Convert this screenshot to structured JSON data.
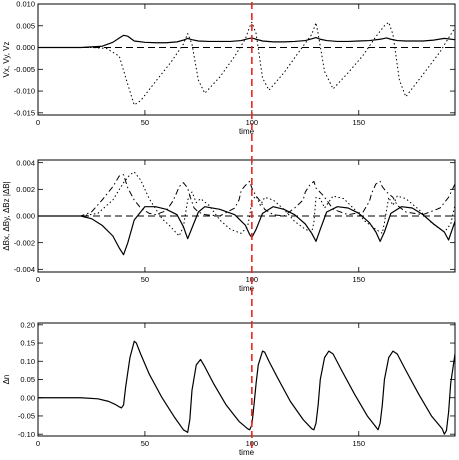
{
  "chart_data": [
    {
      "type": "line",
      "xlabel": "time",
      "ylabel": "Vx, Vy, Vz",
      "xlim": [
        0,
        195
      ],
      "ylim": [
        -0.0155,
        0.01
      ],
      "xticks": [
        0,
        50,
        100,
        150
      ],
      "xtick_labels": [
        "0",
        "50",
        "100",
        "150"
      ],
      "yticks": [
        0.01,
        0.005,
        0.0,
        -0.005,
        -0.01,
        -0.015
      ],
      "ytick_labels": [
        "0.010",
        "0.005",
        "0.000",
        "-0.005",
        "-0.010",
        "-0.015"
      ],
      "series": [
        {
          "style": "solid",
          "x": [
            0,
            20,
            30,
            35,
            38,
            40,
            42,
            45,
            50,
            55,
            60,
            65,
            68,
            70,
            72,
            75,
            80,
            85,
            90,
            95,
            98,
            100,
            102,
            105,
            110,
            115,
            120,
            125,
            128,
            130,
            132,
            135,
            140,
            145,
            150,
            155,
            160,
            163,
            165,
            168,
            172,
            180,
            185,
            190,
            195
          ],
          "y": [
            0,
            0,
            0.0003,
            0.0012,
            0.0022,
            0.0028,
            0.0026,
            0.0015,
            0.0012,
            0.0011,
            0.0011,
            0.0013,
            0.0017,
            0.0021,
            0.0018,
            0.0015,
            0.0014,
            0.0014,
            0.0014,
            0.0016,
            0.002,
            0.0022,
            0.0019,
            0.0015,
            0.0013,
            0.0013,
            0.0014,
            0.0016,
            0.002,
            0.0023,
            0.0019,
            0.0016,
            0.0014,
            0.0014,
            0.0015,
            0.0016,
            0.0019,
            0.0022,
            0.0019,
            0.0016,
            0.0015,
            0.0015,
            0.0017,
            0.0021,
            0.0018
          ]
        },
        {
          "style": "dashed",
          "x": [
            0,
            195
          ],
          "y": [
            0,
            0
          ]
        },
        {
          "style": "dotted",
          "x": [
            0,
            25,
            32,
            38,
            42,
            45,
            48,
            55,
            62,
            68,
            70,
            72,
            75,
            78,
            85,
            92,
            97,
            99,
            100,
            102,
            105,
            108,
            115,
            122,
            128,
            130,
            131,
            134,
            138,
            145,
            152,
            158,
            162,
            164,
            166,
            169,
            172,
            180,
            188,
            193,
            195
          ],
          "y": [
            0,
            0,
            -0.0002,
            -0.002,
            -0.0085,
            -0.0132,
            -0.0122,
            -0.0078,
            -0.0035,
            0.0008,
            0.0032,
            0.0008,
            -0.0075,
            -0.0105,
            -0.0068,
            -0.002,
            0.002,
            0.0048,
            0.0058,
            0.0032,
            -0.007,
            -0.0098,
            -0.0058,
            -0.001,
            0.003,
            0.0057,
            0.0032,
            -0.0055,
            -0.0095,
            -0.0058,
            -0.0018,
            0.0025,
            0.005,
            0.0058,
            0.003,
            -0.0075,
            -0.0113,
            -0.0062,
            -0.001,
            0.003,
            0.0045
          ]
        }
      ]
    },
    {
      "type": "line",
      "xlabel": "time",
      "ylabel": "ΔBx, ΔBy, ΔBz |ΔB|",
      "xlim": [
        0,
        195
      ],
      "ylim": [
        -0.0042,
        0.0042
      ],
      "xticks": [
        0,
        50,
        100,
        150
      ],
      "xtick_labels": [
        "0",
        "50",
        "100",
        "150"
      ],
      "yticks": [
        0.004,
        0.002,
        0.0,
        -0.002,
        -0.004
      ],
      "ytick_labels": [
        "0.004",
        "0.002",
        "0.000",
        "-0.002",
        "-0.004"
      ],
      "series": [
        {
          "style": "solid",
          "x": [
            0,
            20,
            25,
            30,
            35,
            38,
            40,
            42,
            45,
            50,
            55,
            60,
            65,
            68,
            70,
            72,
            75,
            78,
            85,
            92,
            97,
            99,
            100,
            102,
            105,
            110,
            115,
            120,
            125,
            128,
            130,
            132,
            135,
            140,
            145,
            150,
            155,
            158,
            160,
            162,
            165,
            170,
            175,
            180,
            185,
            190,
            192,
            195
          ],
          "y": [
            0,
            0,
            -0.0002,
            -0.0007,
            -0.0015,
            -0.0024,
            -0.0029,
            -0.002,
            -0.0003,
            0.0007,
            0.0007,
            0.0005,
            0.0001,
            -0.0008,
            -0.0017,
            -0.0009,
            0.0003,
            0.0007,
            0.0005,
            0.0001,
            -0.0007,
            -0.0014,
            -0.0016,
            -0.001,
            0.0002,
            0.0007,
            0.0005,
            0.0001,
            -0.0006,
            -0.0013,
            -0.0019,
            -0.001,
            0.0003,
            0.0007,
            0.0006,
            0.0002,
            -0.0005,
            -0.0012,
            -0.0019,
            -0.0012,
            0.0002,
            0.0007,
            0.0006,
            0.0001,
            -0.0006,
            -0.0012,
            -0.0018,
            -0.0004
          ]
        },
        {
          "style": "dashed",
          "x": [
            0,
            195
          ],
          "y": [
            0,
            0
          ]
        },
        {
          "style": "dotted",
          "x": [
            0,
            20,
            28,
            35,
            40,
            43,
            45,
            48,
            52,
            58,
            62,
            66,
            68,
            70,
            72,
            74,
            76,
            80,
            85,
            90,
            95,
            98,
            99,
            100,
            102,
            104,
            106,
            110,
            115,
            120,
            125,
            128,
            129,
            130,
            132,
            134,
            138,
            143,
            148,
            153,
            158,
            161,
            162,
            164,
            166,
            168,
            172,
            178,
            184,
            190,
            193,
            195
          ],
          "y": [
            0,
            0,
            0.0002,
            0.0012,
            0.0025,
            0.0031,
            0.0033,
            0.0027,
            0.0013,
            -0.0002,
            -0.0008,
            -0.0015,
            -0.0008,
            0.0012,
            0.0018,
            0.001,
            0.0013,
            0.0008,
            -0.0003,
            -0.001,
            -0.0013,
            -0.0008,
            0,
            0.0012,
            0.0015,
            0.0008,
            0.0014,
            0.0012,
            0.0005,
            -0.0004,
            -0.001,
            -0.0012,
            -0.0005,
            0.0014,
            0.0013,
            0.0006,
            0.0015,
            0.0013,
            0.0005,
            -0.0004,
            -0.001,
            -0.0013,
            -0.0005,
            0.0014,
            0.0008,
            0.0015,
            0.0013,
            0.0005,
            -0.0005,
            -0.0012,
            -0.0006,
            0.0008
          ]
        },
        {
          "style": "dashdot",
          "x": [
            0,
            20,
            25,
            30,
            35,
            38,
            40,
            42,
            45,
            48,
            52,
            55,
            60,
            63,
            65,
            66,
            68,
            70,
            71,
            73,
            75,
            78,
            85,
            92,
            94,
            95,
            97,
            99,
            100,
            102,
            104,
            106,
            110,
            115,
            120,
            124,
            125,
            127,
            129,
            130,
            133,
            135,
            138,
            145,
            152,
            155,
            156,
            158,
            160,
            161,
            163,
            166,
            168,
            172,
            180,
            188,
            192,
            195
          ],
          "y": [
            0,
            0,
            0.0003,
            0.0012,
            0.0022,
            0.003,
            0.0031,
            0.0021,
            0.0012,
            0.0006,
            0.0002,
            0.0001,
            0.0004,
            0.0011,
            0.0018,
            0.0022,
            0.0025,
            0.0021,
            0.0015,
            0.0006,
            0.0003,
            0.0001,
            0,
            0.0006,
            0.0012,
            0.0019,
            0.0023,
            0.0026,
            0.0021,
            0.0015,
            0.0011,
            0.0005,
            0.0001,
            0,
            0.0006,
            0.0012,
            0.0018,
            0.0023,
            0.0026,
            0.0021,
            0.0016,
            0.0012,
            0.0005,
            0.0001,
            0.0003,
            0.0011,
            0.0017,
            0.0024,
            0.0026,
            0.0022,
            0.0018,
            0.0014,
            0.0008,
            0.0003,
            0.0001,
            0.0006,
            0.0014,
            0.0024
          ]
        }
      ]
    },
    {
      "type": "line",
      "xlabel": "time",
      "ylabel": "Δn",
      "xlim": [
        0,
        195
      ],
      "ylim": [
        -0.105,
        0.205
      ],
      "xticks": [
        0,
        50,
        100,
        150
      ],
      "xtick_labels": [
        "0",
        "50",
        "100",
        "150"
      ],
      "yticks": [
        0.2,
        0.15,
        0.1,
        0.05,
        0.0,
        -0.05,
        -0.1
      ],
      "ytick_labels": [
        "0.20",
        "0.15",
        "0.10",
        "0.05",
        "0.00",
        "-0.05",
        "-0.10"
      ],
      "series": [
        {
          "style": "solid",
          "x": [
            0,
            20,
            28,
            33,
            36,
            38,
            39,
            40,
            41,
            43,
            45,
            46,
            48,
            52,
            58,
            64,
            68,
            70,
            71,
            72,
            74,
            76,
            78,
            82,
            88,
            94,
            98,
            99,
            100,
            101,
            102,
            103,
            105,
            106,
            108,
            112,
            118,
            124,
            128,
            129,
            130,
            131,
            132,
            134,
            136,
            138,
            142,
            148,
            154,
            158,
            159,
            160,
            161,
            162,
            164,
            166,
            168,
            172,
            178,
            184,
            189,
            190,
            191,
            192,
            193,
            195
          ],
          "y": [
            0,
            0,
            -0.003,
            -0.01,
            -0.018,
            -0.025,
            -0.028,
            -0.02,
            0.03,
            0.11,
            0.155,
            0.15,
            0.12,
            0.065,
            0.0,
            -0.055,
            -0.088,
            -0.095,
            -0.06,
            0.02,
            0.09,
            0.105,
            0.085,
            0.04,
            -0.02,
            -0.065,
            -0.085,
            -0.088,
            -0.075,
            -0.02,
            0.04,
            0.09,
            0.128,
            0.125,
            0.1,
            0.055,
            -0.01,
            -0.06,
            -0.085,
            -0.088,
            -0.07,
            -0.02,
            0.05,
            0.11,
            0.128,
            0.12,
            0.075,
            0.01,
            -0.05,
            -0.08,
            -0.088,
            -0.07,
            -0.02,
            0.05,
            0.11,
            0.128,
            0.12,
            0.075,
            0.01,
            -0.05,
            -0.085,
            -0.1,
            -0.09,
            -0.04,
            0.04,
            0.12
          ]
        }
      ]
    }
  ],
  "marker": {
    "time": 100,
    "color": "#e8281e",
    "style": "dashed"
  },
  "colors": {
    "line": "#000000",
    "marker": "#e8281e"
  }
}
